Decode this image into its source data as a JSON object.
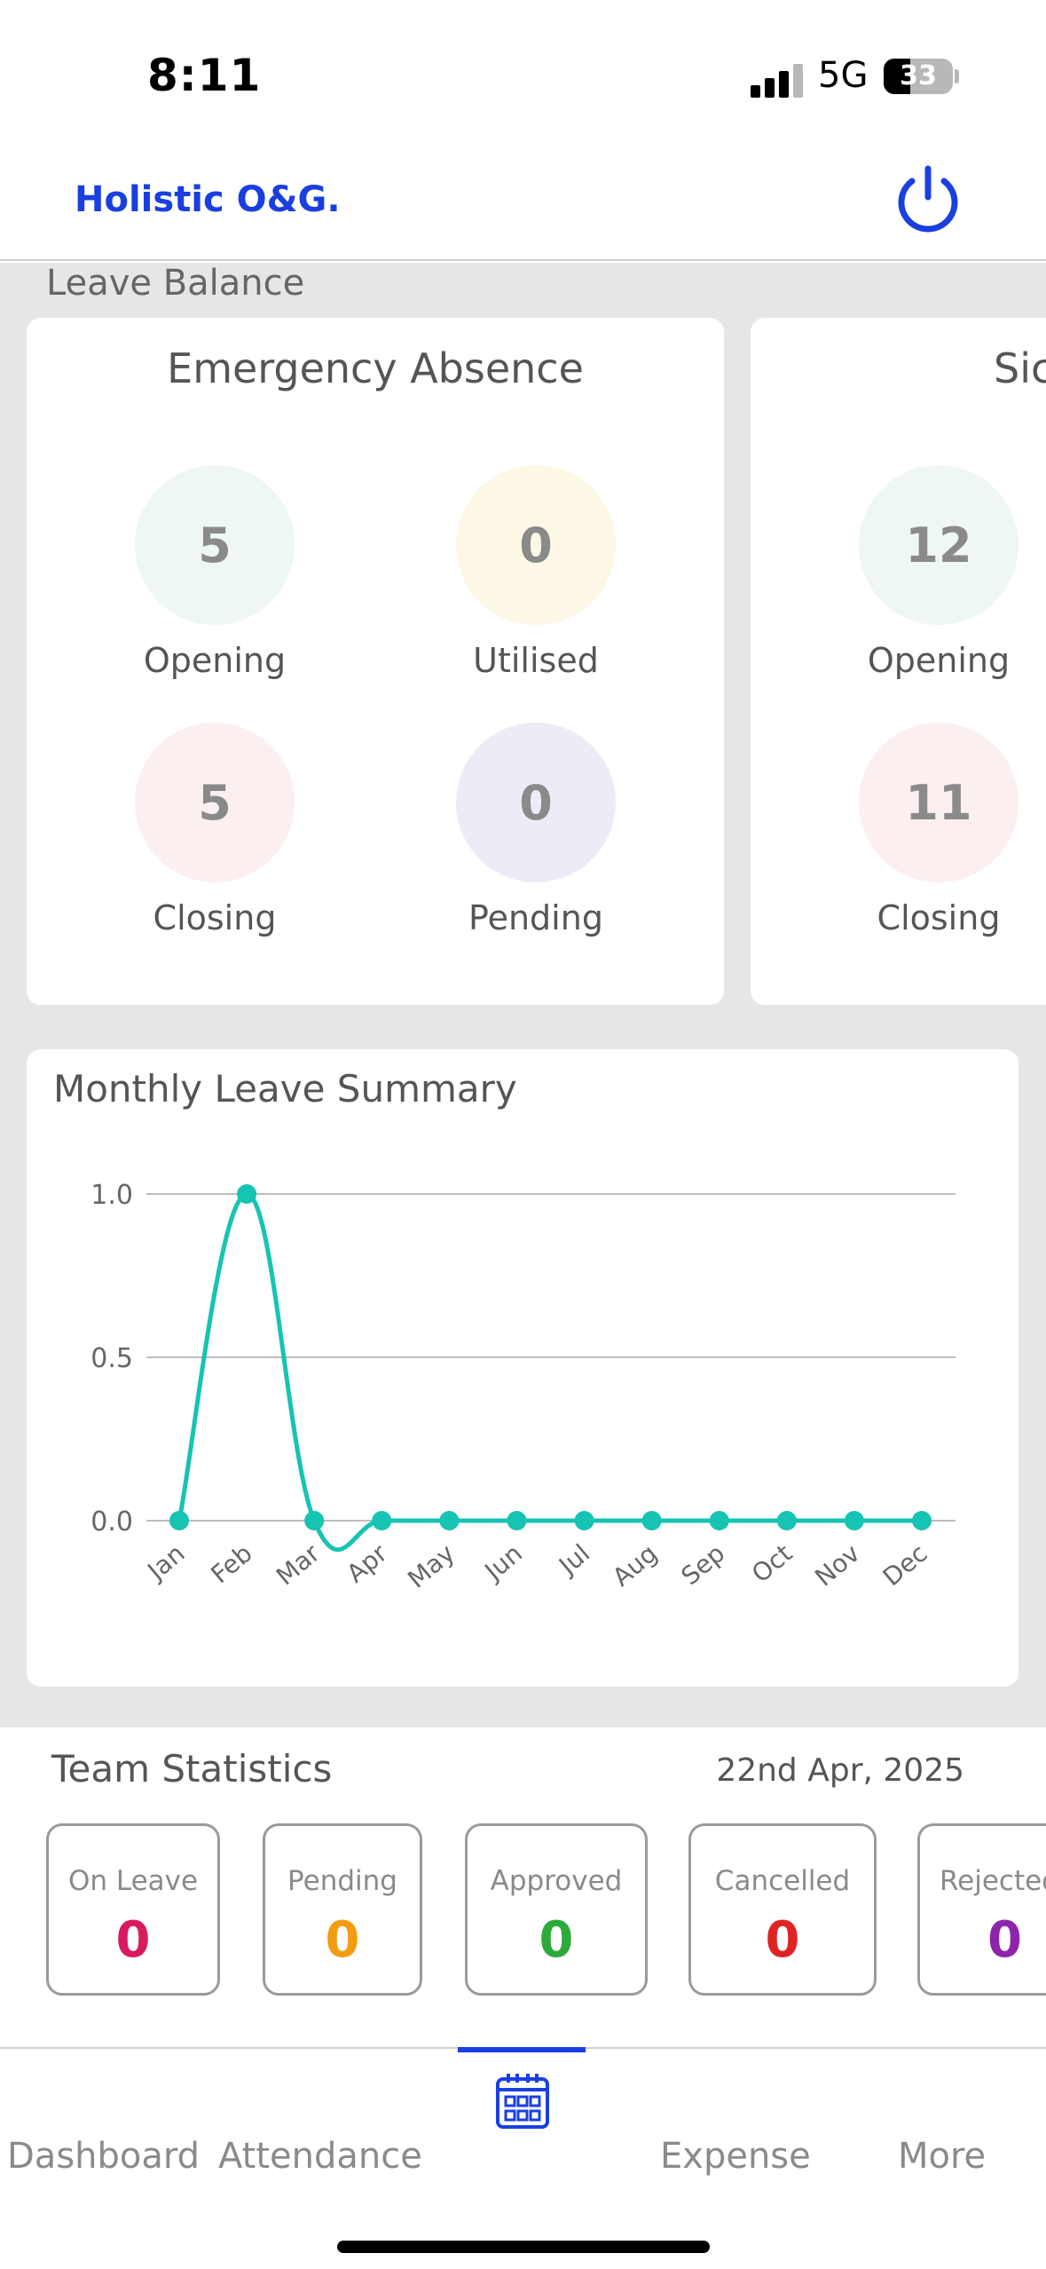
{
  "status_bar": {
    "time": "8:11",
    "network": "5G",
    "battery": "33"
  },
  "header": {
    "brand": "Holistic O&G.",
    "power_icon": "power-icon"
  },
  "leave_balance": {
    "section_title": "Leave Balance",
    "cards": [
      {
        "title": "Emergency Absence",
        "opening": {
          "value": "5",
          "label": "Opening"
        },
        "utilised": {
          "value": "0",
          "label": "Utilised"
        },
        "closing": {
          "value": "5",
          "label": "Closing"
        },
        "pending": {
          "value": "0",
          "label": "Pending"
        }
      },
      {
        "title": "Sic",
        "opening": {
          "value": "12",
          "label": "Opening"
        },
        "closing": {
          "value": "11",
          "label": "Closing"
        }
      }
    ],
    "colors": {
      "opening": "#eef7f2",
      "utilised": "#fdf7e6",
      "closing": "#fcefef",
      "pending": "#eeebf7"
    }
  },
  "monthly_summary": {
    "title": "Monthly Leave Summary"
  },
  "chart_data": {
    "type": "line",
    "categories": [
      "Jan",
      "Feb",
      "Mar",
      "Apr",
      "May",
      "Jun",
      "Jul",
      "Aug",
      "Sep",
      "Oct",
      "Nov",
      "Dec"
    ],
    "series": [
      {
        "values": [
          0,
          1,
          0,
          0,
          0,
          0,
          0,
          0,
          0,
          0,
          0,
          0
        ]
      }
    ],
    "yticks": [
      "0.0",
      "0.5",
      "1.0"
    ],
    "ylim": [
      0,
      1
    ],
    "grid": true,
    "color": "#17c3b2"
  },
  "team_statistics": {
    "title": "Team Statistics",
    "date": "22nd Apr, 2025",
    "stats": [
      {
        "label": "On Leave",
        "value": "0",
        "color": "#d81b60"
      },
      {
        "label": "Pending",
        "value": "0",
        "color": "#f39c12"
      },
      {
        "label": "Approved",
        "value": "0",
        "color": "#2eaa3a"
      },
      {
        "label": "Cancelled",
        "value": "0",
        "color": "#e02424"
      },
      {
        "label": "Rejected",
        "value": "0",
        "color": "#8e24aa"
      }
    ]
  },
  "bottom_nav": {
    "items": [
      "Dashboard",
      "Attendance",
      "Expense",
      "More"
    ],
    "active_icon": "calendar-icon"
  }
}
